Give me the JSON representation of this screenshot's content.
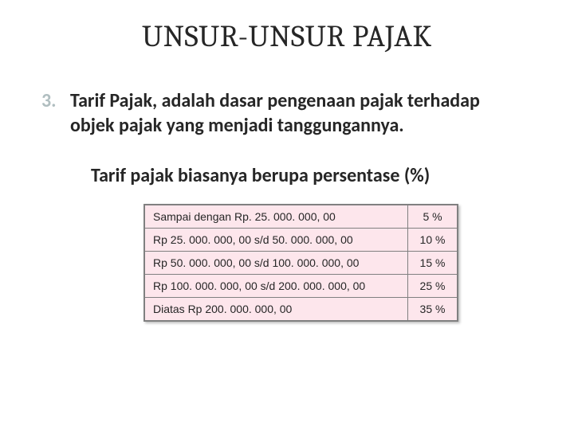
{
  "title": "UNSUR-UNSUR PAJAK",
  "list_number": "3.",
  "body_line": "Tarif Pajak, adalah dasar pengenaan pajak terhadap objek pajak yang menjadi tanggungannya.",
  "body_indent": "Tarif pajak biasanya berupa persentase (%)",
  "table": {
    "rows": [
      {
        "range": "Sampai dengan  Rp. 25. 000. 000, 00",
        "pct": "5 %"
      },
      {
        "range": "Rp 25. 000. 000, 00     s/d   50. 000. 000, 00",
        "pct": "10 %"
      },
      {
        "range": "Rp 50. 000. 000, 00     s/d  100. 000. 000, 00",
        "pct": "15 %"
      },
      {
        "range": "Rp 100. 000. 000, 00   s/d  200. 000. 000, 00",
        "pct": "25 %"
      },
      {
        "range": "Diatas Rp 200. 000. 000, 00",
        "pct": "35 %"
      }
    ],
    "cell_bg": "#fde6ec",
    "border_color": "#808080",
    "font_size_pt": 10
  },
  "colors": {
    "title": "#262626",
    "list_number": "#b0bec0",
    "body": "#262626",
    "background": "#ffffff"
  },
  "typography": {
    "title_font": "Cambria",
    "title_size_pt": 28,
    "body_font": "Calibri",
    "body_size_pt": 18,
    "body_weight": "bold"
  }
}
